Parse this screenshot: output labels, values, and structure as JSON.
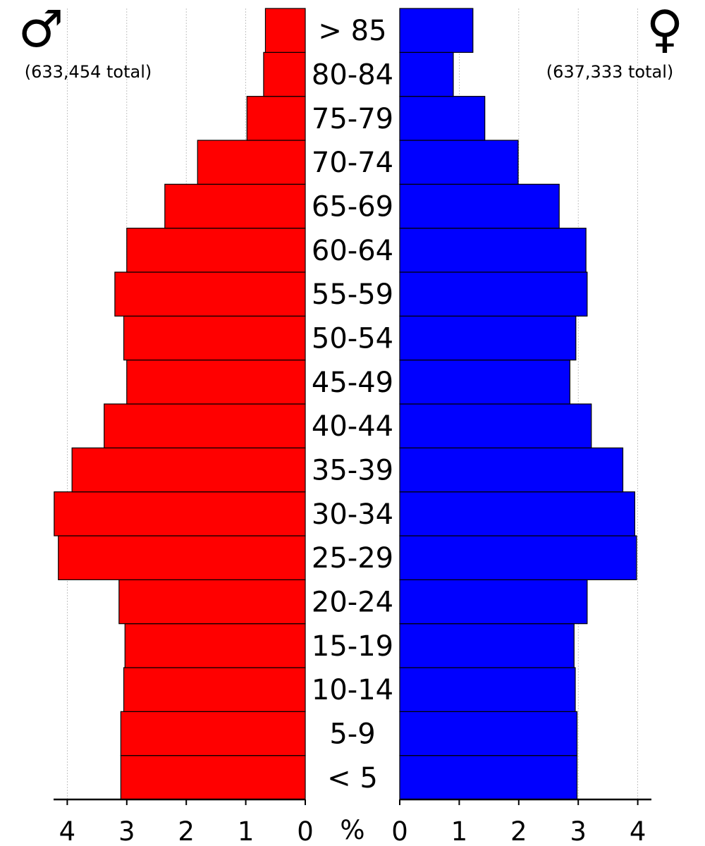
{
  "chart_data": {
    "type": "bar",
    "subtype": "population-pyramid",
    "categories": [
      "< 5",
      "5-9",
      "10-14",
      "15-19",
      "20-24",
      "25-29",
      "30-34",
      "35-39",
      "40-44",
      "45-49",
      "50-54",
      "55-59",
      "60-64",
      "65-69",
      "70-74",
      "75-79",
      "80-84",
      "> 85"
    ],
    "series": [
      {
        "symbol": "♂",
        "total_label": "(633,454 total)",
        "side": "left",
        "color": "#ff0000",
        "values": [
          3.1,
          3.1,
          3.05,
          3.03,
          3.13,
          4.15,
          4.22,
          3.92,
          3.38,
          3.0,
          3.05,
          3.2,
          3.0,
          2.36,
          1.81,
          0.98,
          0.7,
          0.67
        ]
      },
      {
        "symbol": "♀",
        "total_label": "(637,333 total)",
        "side": "right",
        "color": "#0000ff",
        "values": [
          2.98,
          2.98,
          2.95,
          2.93,
          3.15,
          3.98,
          3.95,
          3.75,
          3.22,
          2.86,
          2.96,
          3.15,
          3.13,
          2.68,
          1.99,
          1.43,
          0.9,
          1.23
        ]
      }
    ],
    "axis_unit": "%",
    "xlim": [
      0,
      4.2
    ],
    "left_ticks": [
      "4",
      "3",
      "2",
      "1",
      "0"
    ],
    "right_ticks": [
      "0",
      "1",
      "2",
      "3",
      "4"
    ],
    "grid": "vertical dashed at integer ticks",
    "legend": "none"
  }
}
